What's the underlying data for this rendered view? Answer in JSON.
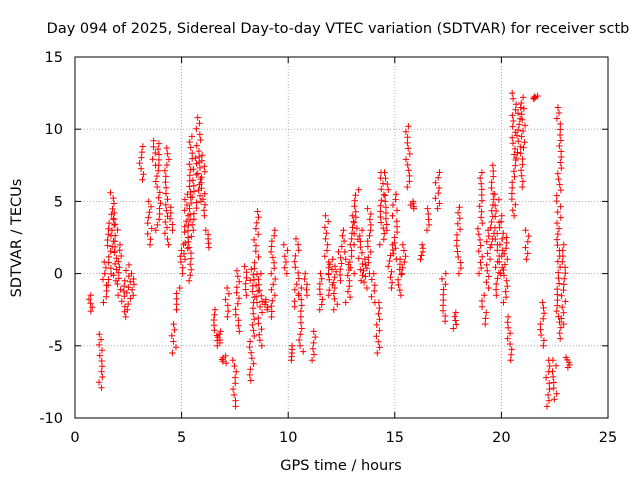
{
  "chart_data": {
    "type": "scatter",
    "title": "Day 094 of 2025, Sidereal Day-to-day VTEC variation (SDTVAR) for receiver sctb",
    "xlabel": "GPS time / hours",
    "ylabel": "SDTVAR / TECUs",
    "xlim": [
      0,
      25
    ],
    "ylim": [
      -10,
      15
    ],
    "xticks": [
      "0",
      "5",
      "10",
      "15",
      "20",
      "25"
    ],
    "yticks": [
      "-10",
      "-5",
      "0",
      "5",
      "10",
      "15"
    ],
    "xtick_values": [
      0,
      5,
      10,
      15,
      20,
      25
    ],
    "ytick_values": [
      -10,
      -5,
      0,
      5,
      10,
      15
    ],
    "grid": true,
    "marker": "+",
    "color": "#ff0000",
    "series": [
      {
        "name": "SDTVAR",
        "tracks": [
          [
            0.7,
            -1.5,
            -2.6
          ],
          [
            1.2,
            -7.9,
            -4.2
          ],
          [
            1.4,
            -2.0,
            0.8
          ],
          [
            1.6,
            -0.8,
            3.5
          ],
          [
            1.75,
            1.5,
            5.6
          ],
          [
            1.9,
            -0.5,
            4.2
          ],
          [
            2.1,
            -1.5,
            2.0
          ],
          [
            2.3,
            -3.0,
            -0.5
          ],
          [
            2.5,
            -2.5,
            0.6
          ],
          [
            2.7,
            -1.5,
            0.0
          ],
          [
            3.1,
            6.5,
            8.8
          ],
          [
            3.5,
            2.0,
            5.0
          ],
          [
            3.7,
            7.5,
            9.2
          ],
          [
            3.9,
            3.0,
            9.0
          ],
          [
            4.3,
            2.0,
            8.7
          ],
          [
            4.5,
            3.0,
            4.6
          ],
          [
            4.65,
            -5.5,
            -3.5
          ],
          [
            4.85,
            -2.5,
            -1.0
          ],
          [
            5.0,
            0.0,
            2.0
          ],
          [
            5.2,
            1.0,
            5.5
          ],
          [
            5.4,
            -0.5,
            9.5
          ],
          [
            5.6,
            3.0,
            8.0
          ],
          [
            5.8,
            5.0,
            10.8
          ],
          [
            6.0,
            4.0,
            8.2
          ],
          [
            6.2,
            1.8,
            3.0
          ],
          [
            6.6,
            -5.0,
            -2.5
          ],
          [
            6.8,
            -4.8,
            -4.0
          ],
          [
            7.0,
            -6.2,
            -5.7
          ],
          [
            7.15,
            -3.0,
            -1.0
          ],
          [
            7.5,
            -9.2,
            -6.0
          ],
          [
            7.6,
            -4.0,
            0.2
          ],
          [
            8.0,
            -1.5,
            0.5
          ],
          [
            8.3,
            -7.4,
            0.3
          ],
          [
            8.5,
            -2.0,
            4.3
          ],
          [
            8.7,
            -5.0,
            0.0
          ],
          [
            9.0,
            -2.5,
            -1.8
          ],
          [
            9.3,
            -3.0,
            3.0
          ],
          [
            9.9,
            0.0,
            2.0
          ],
          [
            10.2,
            -6.0,
            -5.0
          ],
          [
            10.4,
            -2.3,
            2.4
          ],
          [
            10.6,
            -5.4,
            -1.0
          ],
          [
            10.8,
            -1.5,
            0.0
          ],
          [
            11.2,
            -6.0,
            -4.0
          ],
          [
            11.5,
            -2.5,
            0.0
          ],
          [
            11.8,
            0.0,
            4.0
          ],
          [
            12.0,
            -1.5,
            1.0
          ],
          [
            12.2,
            -2.5,
            0.5
          ],
          [
            12.4,
            -0.5,
            1.5
          ],
          [
            12.6,
            1.5,
            3.0
          ],
          [
            12.8,
            -2.0,
            1.0
          ],
          [
            13.0,
            0.0,
            4.0
          ],
          [
            13.2,
            2.0,
            5.8
          ],
          [
            13.4,
            -0.5,
            3.0
          ],
          [
            13.6,
            -1.0,
            1.0
          ],
          [
            13.8,
            0.0,
            4.5
          ],
          [
            14.0,
            -2.0,
            0.0
          ],
          [
            14.2,
            -5.5,
            -2.0
          ],
          [
            14.4,
            2.0,
            7.0
          ],
          [
            14.6,
            3.0,
            7.0
          ],
          [
            14.8,
            -1.0,
            2.0
          ],
          [
            15.0,
            1.0,
            5.5
          ],
          [
            15.2,
            -1.5,
            1.0
          ],
          [
            15.4,
            0.0,
            2.0
          ],
          [
            15.6,
            6.0,
            10.2
          ],
          [
            15.8,
            4.5,
            5.0
          ],
          [
            16.3,
            1.0,
            2.0
          ],
          [
            16.6,
            3.0,
            4.5
          ],
          [
            17.0,
            4.5,
            7.0
          ],
          [
            17.3,
            -3.3,
            0.0
          ],
          [
            17.8,
            -3.8,
            -2.7
          ],
          [
            18.0,
            0.0,
            4.6
          ],
          [
            19.0,
            0.0,
            7.0
          ],
          [
            19.2,
            -3.5,
            -1.5
          ],
          [
            19.4,
            -1.0,
            3.0
          ],
          [
            19.6,
            2.0,
            7.5
          ],
          [
            19.8,
            -1.5,
            5.5
          ],
          [
            20.0,
            0.0,
            4.0
          ],
          [
            20.2,
            -2.0,
            2.5
          ],
          [
            20.4,
            -6.0,
            -3.0
          ],
          [
            20.6,
            4.0,
            12.5
          ],
          [
            20.8,
            8.0,
            11.5
          ],
          [
            21.0,
            6.0,
            12.2
          ],
          [
            21.2,
            1.0,
            3.0
          ],
          [
            21.6,
            12.1,
            12.3
          ],
          [
            21.9,
            -5.0,
            -2.0
          ],
          [
            22.2,
            -9.2,
            -6.0
          ],
          [
            22.5,
            -8.7,
            -6.0
          ],
          [
            22.7,
            -4.5,
            11.5
          ],
          [
            22.9,
            -3.5,
            2.0
          ],
          [
            23.1,
            -6.5,
            -5.8
          ]
        ]
      }
    ]
  }
}
